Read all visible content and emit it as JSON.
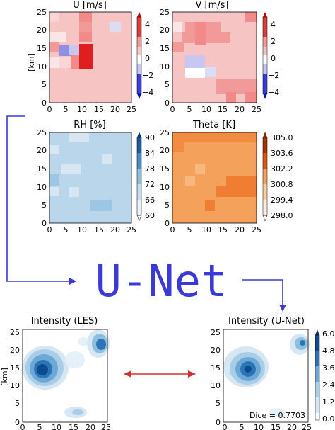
{
  "panels": {
    "u": {
      "title": "U [m/s]",
      "ylabel": "[km]",
      "cbar_ticks": [
        "4",
        "2",
        "0",
        "−2",
        "−4"
      ]
    },
    "v": {
      "title": "V [m/s]",
      "cbar_ticks": [
        "4",
        "2",
        "0",
        "−2",
        "−4"
      ]
    },
    "rh": {
      "title": "RH [%]",
      "cbar_ticks": [
        "90",
        "84",
        "78",
        "72",
        "66",
        "60"
      ]
    },
    "theta": {
      "title": "Theta [K]",
      "cbar_ticks": [
        "305.0",
        "303.6",
        "302.2",
        "300.8",
        "299.4",
        "298.0"
      ]
    },
    "les": {
      "title": "Intensity (LES)",
      "ylabel": "[km]"
    },
    "unet": {
      "title": "Intensity (U-Net)",
      "dice": "Dice = 0.7703",
      "cbar_ticks": [
        "6.0",
        "4.8",
        "3.6",
        "2.4",
        "1.2",
        "0.0"
      ]
    }
  },
  "axis_ticks": {
    "x": [
      "0",
      "5",
      "10",
      "15",
      "20",
      "25"
    ],
    "y": [
      "25",
      "20",
      "15",
      "10",
      "5",
      "0"
    ]
  },
  "model_label": "U-Net",
  "colors": {
    "arrow": "#3a3ad6",
    "compare_arrow": "#d03030",
    "u_v_base": "#f7c4c4",
    "rh_base": "#b9d6ea",
    "theta_base": "#f4a15c"
  }
}
